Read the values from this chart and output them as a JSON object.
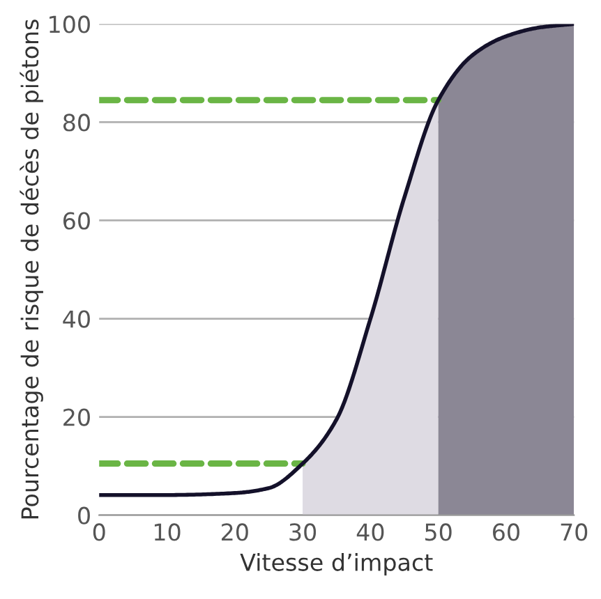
{
  "chart_data": {
    "type": "line",
    "xlabel": "Vitesse d’impact",
    "ylabel": "Pourcentage de risque de décès de piétons",
    "xlim": [
      0,
      70
    ],
    "ylim": [
      0,
      100
    ],
    "xticks": [
      0,
      10,
      20,
      30,
      40,
      50,
      60,
      70
    ],
    "yticks": [
      0,
      20,
      40,
      60,
      80,
      100
    ],
    "grid": "y",
    "series": [
      {
        "type": "area",
        "color": "#dedbe3",
        "x": [
          30,
          35,
          40,
          45,
          50
        ],
        "values": [
          10.5,
          19.5,
          40,
          64.7,
          84.5
        ]
      },
      {
        "type": "area",
        "color": "#8b8795",
        "x": [
          50,
          55,
          60,
          65,
          70
        ],
        "values": [
          84.5,
          93.6,
          97.5,
          99.3,
          100
        ]
      },
      {
        "type": "line",
        "color": "#6ab545",
        "line_style": "dashed",
        "x": [
          0,
          30
        ],
        "values": [
          10.5,
          10.5
        ]
      },
      {
        "type": "line",
        "color": "#6ab545",
        "line_style": "dashed",
        "x": [
          0,
          50
        ],
        "values": [
          84.5,
          84.5
        ]
      },
      {
        "color": "#14112a",
        "line_style": "solid",
        "x": [
          0,
          10,
          20,
          25,
          30,
          35,
          40,
          45,
          50,
          55,
          60,
          65,
          70
        ],
        "values": [
          4.1,
          4.1,
          4.5,
          5.5,
          10.5,
          19.5,
          40,
          64.7,
          84.5,
          93.6,
          97.5,
          99.3,
          100
        ]
      }
    ]
  }
}
